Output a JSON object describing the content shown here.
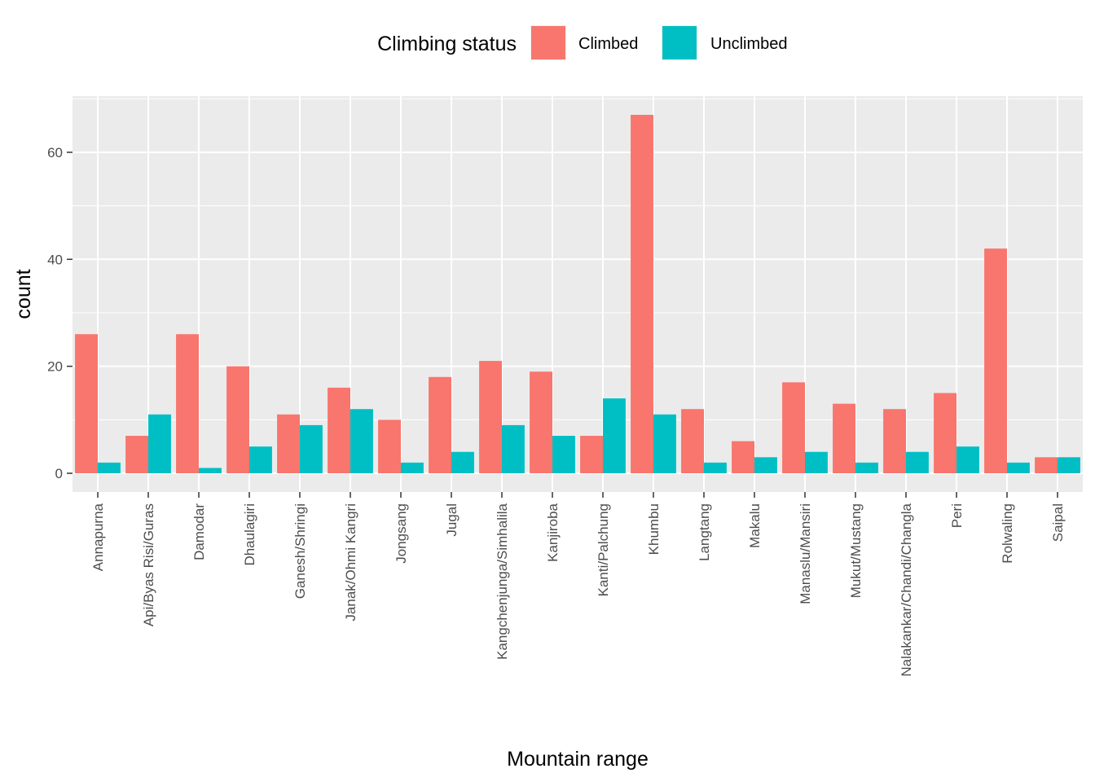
{
  "chart_data": {
    "type": "bar",
    "title": "",
    "xlabel": "Mountain range",
    "ylabel": "count",
    "ylim": [
      -3.5,
      70.5
    ],
    "yticks": [
      0,
      20,
      40,
      60
    ],
    "grid": true,
    "legend": {
      "title": "Climbing status",
      "position": "top"
    },
    "categories": [
      "Annapurna",
      "Api/Byas Risi/Guras",
      "Damodar",
      "Dhaulagiri",
      "Ganesh/Shringi",
      "Janak/Ohmi Kangri",
      "Jongsang",
      "Jugal",
      "Kangchenjunga/Simhalila",
      "Kanjiroba",
      "Kanti/Palchung",
      "Khumbu",
      "Langtang",
      "Makalu",
      "Manaslu/Mansiri",
      "Mukut/Mustang",
      "Nalakankar/Chandi/Changla",
      "Peri",
      "Rolwaling",
      "Saipal"
    ],
    "series": [
      {
        "name": "Climbed",
        "color": "#F8766D",
        "values": [
          26,
          7,
          26,
          20,
          11,
          16,
          10,
          18,
          21,
          19,
          7,
          67,
          12,
          6,
          17,
          13,
          12,
          15,
          42,
          3
        ]
      },
      {
        "name": "Unclimbed",
        "color": "#00BFC4",
        "values": [
          2,
          11,
          1,
          5,
          9,
          12,
          2,
          4,
          9,
          7,
          14,
          11,
          2,
          3,
          4,
          2,
          4,
          5,
          2,
          3
        ]
      }
    ]
  }
}
